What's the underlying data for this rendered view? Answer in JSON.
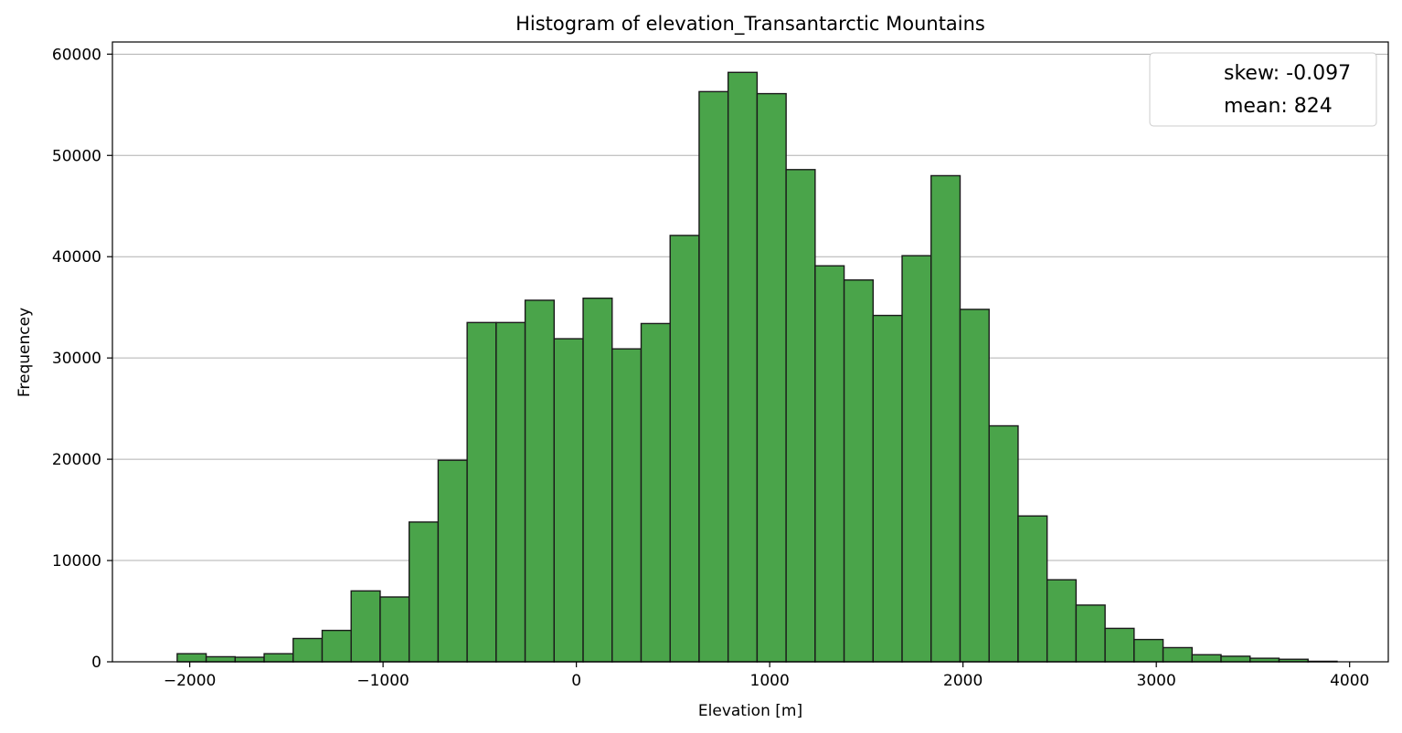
{
  "chart_data": {
    "type": "bar",
    "title": "Histogram of elevation_Transantarctic Mountains",
    "xlabel": "Elevation [m]",
    "ylabel": "Frequencey",
    "xlim": [
      -2400,
      4200
    ],
    "ylim": [
      0,
      61200
    ],
    "x_ticks": [
      -2000,
      -1000,
      0,
      1000,
      2000,
      3000,
      4000
    ],
    "x_tick_labels": [
      "−2000",
      "−1000",
      "0",
      "1000",
      "2000",
      "3000",
      "4000"
    ],
    "y_ticks": [
      0,
      10000,
      20000,
      30000,
      40000,
      50000,
      60000
    ],
    "y_tick_labels": [
      "0",
      "10000",
      "20000",
      "30000",
      "40000",
      "50000",
      "60000"
    ],
    "grid": "y",
    "bar_color": "#4aa44a",
    "edge_color": "#1a1a1a",
    "legend": {
      "position": "top-right",
      "entries": [
        "skew: -0.097",
        "mean: 824"
      ]
    },
    "bin_edges": [
      -2065,
      -1915,
      -1765,
      -1615,
      -1465,
      -1315,
      -1165,
      -1015,
      -865,
      -715,
      -565,
      -415,
      -265,
      -115,
      35,
      185,
      335,
      485,
      635,
      785,
      935,
      1085,
      1235,
      1385,
      1535,
      1685,
      1835,
      1985,
      2135,
      2285,
      2435,
      2585,
      2735,
      2885,
      3035,
      3185,
      3335,
      3485,
      3635,
      3785,
      3935
    ],
    "values": [
      800,
      500,
      450,
      800,
      2300,
      3100,
      7000,
      6400,
      13800,
      19900,
      33500,
      33500,
      35700,
      31900,
      35900,
      30900,
      33400,
      42100,
      56300,
      58200,
      56100,
      48600,
      39100,
      37700,
      34200,
      40100,
      48000,
      34800,
      23300,
      14400,
      8100,
      5600,
      3300,
      2200,
      1400,
      700,
      550,
      350,
      250,
      50
    ]
  }
}
